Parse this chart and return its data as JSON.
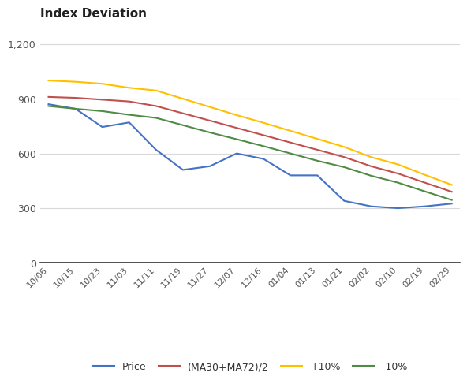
{
  "title": "Index Deviation",
  "x_labels": [
    "10/06",
    "10/15",
    "10/23",
    "11/03",
    "11/11",
    "11/19",
    "11/27",
    "12/07",
    "12/16",
    "01/04",
    "01/13",
    "01/21",
    "02/02",
    "02/10",
    "02/19",
    "02/29"
  ],
  "price_vals": [
    870,
    845,
    745,
    770,
    620,
    510,
    530,
    600,
    570,
    480,
    480,
    340,
    310,
    300,
    310,
    325
  ],
  "ma_vals": [
    910,
    905,
    895,
    885,
    860,
    820,
    780,
    740,
    700,
    660,
    620,
    580,
    530,
    490,
    440,
    390
  ],
  "plus_vals": [
    1000,
    993,
    982,
    960,
    945,
    900,
    855,
    810,
    768,
    724,
    680,
    636,
    580,
    540,
    483,
    428
  ],
  "minus_vals": [
    860,
    845,
    832,
    812,
    795,
    755,
    715,
    678,
    640,
    600,
    560,
    525,
    478,
    440,
    392,
    345
  ],
  "price_color": "#4472C4",
  "ma_color": "#C0504D",
  "plus_color": "#FFC000",
  "minus_color": "#4F8B45",
  "ylim": [
    0,
    1300
  ],
  "yticks": [
    0,
    300,
    600,
    900,
    1200
  ],
  "ytick_labels": [
    "0",
    "300",
    "600",
    "900",
    "1,200"
  ],
  "legend_labels": [
    "Price",
    "(MA30+MA72)/2",
    "+10%",
    "-10%"
  ],
  "bg_color": "#ffffff",
  "grid_color": "#d9d9d9"
}
